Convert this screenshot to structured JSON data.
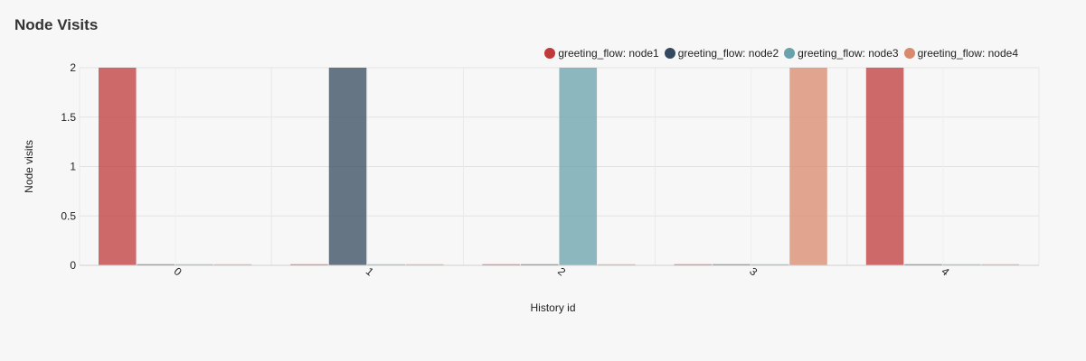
{
  "panel": {
    "title": "Node Visits"
  },
  "chart_data": {
    "type": "bar",
    "title": "Node Visits",
    "xlabel": "History id",
    "ylabel": "Node visits",
    "categories": [
      "0",
      "1",
      "2",
      "3",
      "4"
    ],
    "ylim": [
      0,
      2
    ],
    "yticks": [
      "0",
      "0.5",
      "1",
      "1.5",
      "2"
    ],
    "grid": true,
    "legend_position": "top-right",
    "series": [
      {
        "name": "greeting_flow: node1",
        "color": "#c0393b",
        "values": [
          2,
          0,
          0,
          0,
          2
        ]
      },
      {
        "name": "greeting_flow: node2",
        "color": "#34495e",
        "values": [
          0,
          2,
          0,
          0,
          0
        ]
      },
      {
        "name": "greeting_flow: node3",
        "color": "#6aa2ab",
        "values": [
          0,
          0,
          2,
          0,
          0
        ]
      },
      {
        "name": "greeting_flow: node4",
        "color": "#d98a6c",
        "values": [
          0,
          0,
          0,
          2,
          0
        ]
      }
    ]
  }
}
